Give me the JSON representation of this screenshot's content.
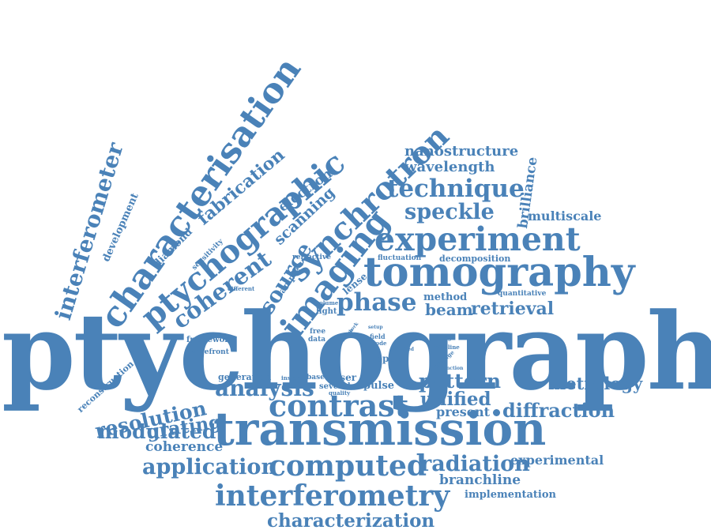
{
  "color": "#4a82b8",
  "words": [
    "ptychography",
    "transmission",
    "tomography",
    "experiment",
    "characterisation",
    "ptychographic",
    "synchrotron",
    "imaging",
    "contrast",
    "computed",
    "interferometry",
    "interferometer",
    "coherent",
    "technique",
    "phase",
    "diffraction",
    "speckle",
    "analysis",
    "resolution",
    "application",
    "radiation",
    "modulated",
    "characterization",
    "source",
    "fabrication",
    "pattern",
    "grating",
    "unified",
    "scanning",
    "metrology",
    "nanostructure",
    "wavelength",
    "brilliance",
    "retrieval",
    "beam",
    "electron",
    "multiscale",
    "experimental",
    "branchline",
    "coherence",
    "present",
    "development",
    "diamond",
    "implementation",
    "sensitivity",
    "reconstruction",
    "decomposition",
    "fluctuation",
    "method",
    "quantitative",
    "refractive",
    "sample",
    "lense",
    "different",
    "framework",
    "wavefront",
    "generation",
    "laser",
    "insight",
    "based",
    "several",
    "quality",
    "pulse",
    "optic",
    "free",
    "data",
    "light",
    "volume",
    "field",
    "mode",
    "setup",
    "reach",
    "work",
    "image",
    "pipeline",
    "limited",
    "average",
    "function"
  ]
}
